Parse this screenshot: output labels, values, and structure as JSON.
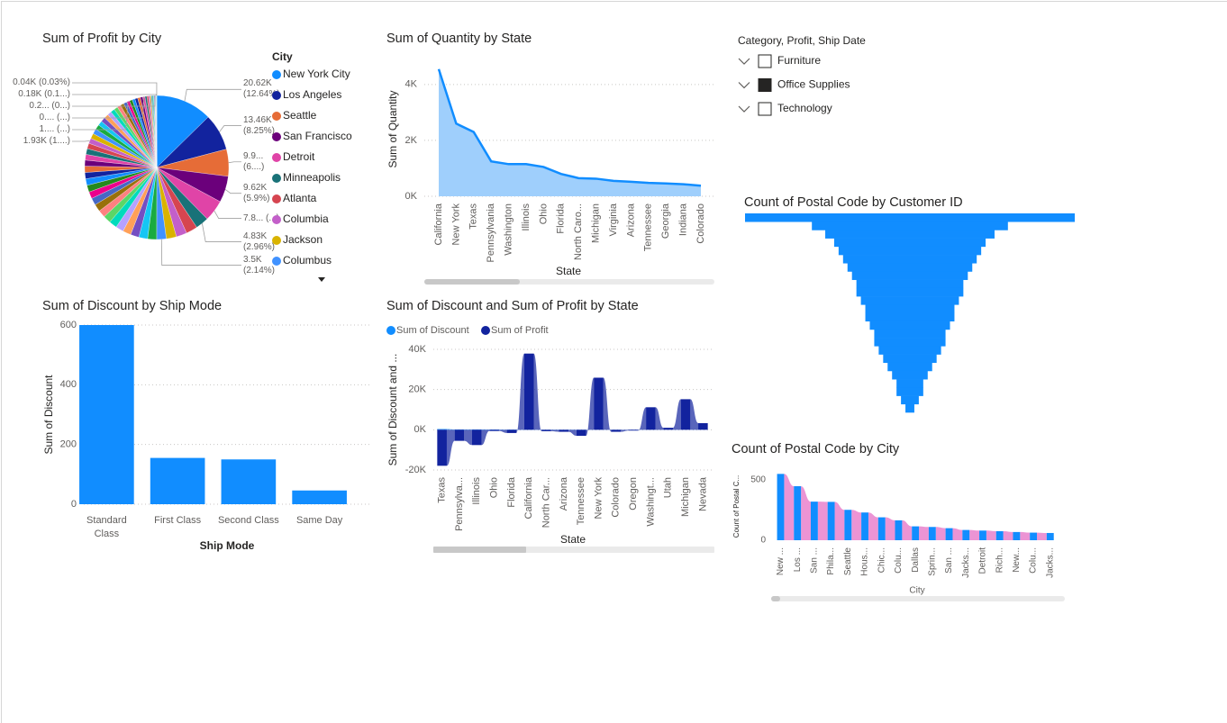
{
  "chart_data": [
    {
      "type": "pie",
      "title": "Sum of Profit by City",
      "legend_title": "City",
      "categories": [
        "New York City",
        "Los Angeles",
        "Seattle",
        "San Francisco",
        "Detroit",
        "Minneapolis",
        "Atlanta",
        "Columbia",
        "Jackson",
        "Columbus",
        null,
        null,
        null,
        null,
        null,
        null,
        null,
        null,
        null,
        null,
        null,
        null,
        null,
        null,
        null,
        null,
        null,
        null,
        null,
        null,
        null,
        null,
        null,
        null,
        null,
        null,
        null,
        null,
        null,
        null,
        null,
        null,
        null,
        null,
        null,
        null,
        null,
        null,
        null,
        null,
        null,
        null,
        null,
        null,
        null,
        null,
        null,
        null,
        null,
        null,
        null,
        null
      ],
      "values": [
        20620,
        13460,
        9900,
        9620,
        7800,
        4830,
        4200,
        3900,
        3700,
        3500,
        3300,
        3200,
        3100,
        3000,
        2900,
        2900,
        2800,
        2700,
        2700,
        2600,
        2500,
        2500,
        2400,
        2300,
        2300,
        2200,
        2100,
        2100,
        2000,
        1930,
        1900,
        1850,
        1800,
        1700,
        1700,
        1600,
        1500,
        1500,
        1400,
        1300,
        1300,
        1200,
        1100,
        1100,
        1000,
        1000,
        1000,
        900,
        800,
        700,
        600,
        500,
        450,
        400,
        350,
        300,
        250,
        220,
        200,
        180,
        100,
        40
      ],
      "value_labels": [
        "20.62K (12.64%)",
        "13.46K (8.25%)",
        "9.9... (6....)",
        "9.62K (5.9%)",
        "7.8... (...)",
        "4.83K (2.96%)",
        null,
        null,
        null,
        "3.5K (2.14%)",
        null,
        null,
        null,
        null,
        null,
        null,
        null,
        null,
        null,
        null,
        null,
        null,
        null,
        null,
        null,
        null,
        null,
        null,
        null,
        "1.93K (1....)",
        null,
        null,
        null,
        null,
        null,
        null,
        null,
        null,
        null,
        null,
        null,
        null,
        "1.... (...)",
        null,
        null,
        null,
        null,
        null,
        "0.... (...)",
        null,
        null,
        null,
        null,
        null,
        null,
        null,
        null,
        "0.2... (0...)",
        null,
        "0.18K (0.1...)",
        null,
        "0.04K (0.03%)"
      ],
      "colors": [
        "#118dff",
        "#12239e",
        "#e66c37",
        "#6b007b",
        "#e044a7",
        "#197278",
        "#d64550",
        "#c35fc9",
        "#d9b300",
        "#4092ff",
        "#1aab40",
        "#15c6f4",
        "#744ec2",
        "#ffa058",
        "#b5a1ff",
        "#00dbbc",
        "#5bd667",
        "#ff8080",
        "#99700a",
        "#4668c5",
        "#ec008c",
        "#25891c"
      ]
    },
    {
      "type": "area",
      "title": "Sum of Quantity by State",
      "x_label": "State",
      "y_label": "Sum of Quantity",
      "categories": [
        "California",
        "New York",
        "Texas",
        "Pennsylvania",
        "Washington",
        "Illinois",
        "Ohio",
        "Florida",
        "North Caro...",
        "Michigan",
        "Virginia",
        "Arizona",
        "Tennessee",
        "Georgia",
        "Indiana",
        "Colorado"
      ],
      "values": [
        4550,
        2600,
        2300,
        1250,
        1150,
        1150,
        1050,
        800,
        650,
        630,
        550,
        520,
        480,
        460,
        430,
        380
      ],
      "color": "#118dff",
      "fill_color": "#9fcffc",
      "ylim": [
        0,
        4800
      ],
      "yticks": [
        {
          "value": 0,
          "label": "0K"
        },
        {
          "value": 2000,
          "label": "2K"
        },
        {
          "value": 4000,
          "label": "4K"
        }
      ],
      "grid": true
    },
    {
      "type": "bar",
      "title": "Sum of Discount by Ship Mode",
      "x_label": "Ship Mode",
      "y_label": "Sum of Discount",
      "categories": [
        "Standard Class",
        "First Class",
        "Second Class",
        "Same Day"
      ],
      "values": [
        600,
        155,
        150,
        46
      ],
      "color": "#118dff",
      "ylim": [
        0,
        600
      ],
      "yticks": [
        0,
        200,
        400,
        600
      ],
      "grid": true
    },
    {
      "type": "ribbon",
      "title": "Sum of Discount and Sum of Profit by State",
      "x_label": "State",
      "y_label": "Sum of Discount and ...",
      "categories": [
        "Texas",
        "Pennsylva...",
        "Illinois",
        "Ohio",
        "Florida",
        "California",
        "North Car...",
        "Arizona",
        "Tennessee",
        "New York",
        "Colorado",
        "Oregon",
        "Washingt...",
        "Utah",
        "Michigan",
        "Nevada"
      ],
      "series": [
        {
          "name": "Sum of Discount",
          "color": "#118dff",
          "values": [
            365,
            193,
            192,
            152,
            115,
            110,
            70,
            68,
            65,
            60,
            58,
            55,
            50,
            45,
            40,
            30
          ]
        },
        {
          "name": "Sum of Profit",
          "color": "#12239e",
          "values": [
            -17900,
            -5500,
            -7600,
            -600,
            -1600,
            37900,
            -700,
            -1000,
            -3000,
            25900,
            -1000,
            -400,
            11200,
            1000,
            15200,
            3300
          ]
        }
      ],
      "ylim": [
        -20000,
        40000
      ],
      "yticks": [
        {
          "value": -20000,
          "label": "-20K"
        },
        {
          "value": 0,
          "label": "0K"
        },
        {
          "value": 20000,
          "label": "20K"
        },
        {
          "value": 40000,
          "label": "40K"
        }
      ],
      "grid": true
    },
    {
      "type": "funnel",
      "title": "Count of Postal Code by Customer ID",
      "categories": [
        null,
        null,
        null,
        null,
        null,
        null,
        null,
        null,
        null,
        null,
        null,
        null,
        null,
        null,
        null,
        null,
        null,
        null,
        null,
        null,
        null,
        null,
        null,
        null
      ],
      "values": [
        37,
        22,
        19,
        17,
        16,
        15,
        14,
        13,
        12,
        12,
        11,
        10,
        10,
        9,
        8,
        8,
        7,
        6,
        5,
        4,
        3,
        3,
        2,
        1
      ],
      "color": "#118dff"
    },
    {
      "type": "ribbon",
      "title": "Count of Postal Code by City",
      "x_label": "City",
      "y_label": "Count of Postal C...",
      "categories": [
        "New ...",
        "Los ...",
        "San ...",
        "Phila...",
        "Seattle",
        "Hous...",
        "Chic...",
        "Colu...",
        "Dallas",
        "Sprin...",
        "San ...",
        "Jacks...",
        "Detroit",
        "Rich...",
        "New...",
        "Colu...",
        "Jacks..."
      ],
      "values": [
        550,
        448,
        320,
        318,
        252,
        230,
        190,
        165,
        115,
        110,
        100,
        85,
        80,
        75,
        68,
        63,
        60
      ],
      "color": "#118dff",
      "ribbon_color": "#ec94d4",
      "ylim": [
        0,
        560
      ],
      "yticks": [
        0,
        500
      ],
      "grid": false
    }
  ],
  "slicer": {
    "title": "Category, Profit, Ship Date",
    "items": [
      {
        "label": "Furniture",
        "checked": false
      },
      {
        "label": "Office Supplies",
        "checked": true
      },
      {
        "label": "Technology",
        "checked": false
      }
    ]
  }
}
